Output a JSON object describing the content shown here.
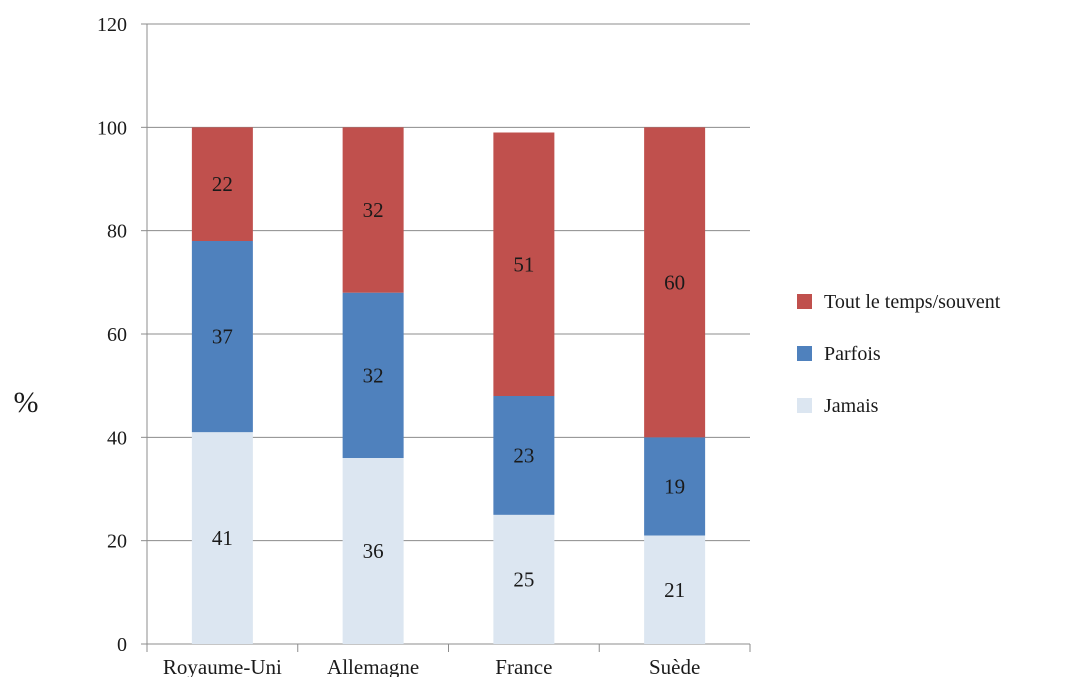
{
  "chart_data": {
    "type": "bar",
    "stacked": true,
    "categories": [
      "Royaume-Uni",
      "Allemagne",
      "France",
      "Suède"
    ],
    "series": [
      {
        "name": "Jamais",
        "values": [
          41,
          36,
          25,
          21
        ],
        "color": "#dce6f1"
      },
      {
        "name": "Parfois",
        "values": [
          37,
          32,
          23,
          19
        ],
        "color": "#4f81bd"
      },
      {
        "name": "Tout le temps/souvent",
        "values": [
          22,
          32,
          51,
          60
        ],
        "color": "#c0504d"
      }
    ],
    "title": "",
    "xlabel": "",
    "ylabel": "%",
    "ylim": [
      0,
      120
    ],
    "yticks": [
      0,
      20,
      40,
      60,
      80,
      100,
      120
    ],
    "grid": true,
    "legend_position": "right"
  }
}
